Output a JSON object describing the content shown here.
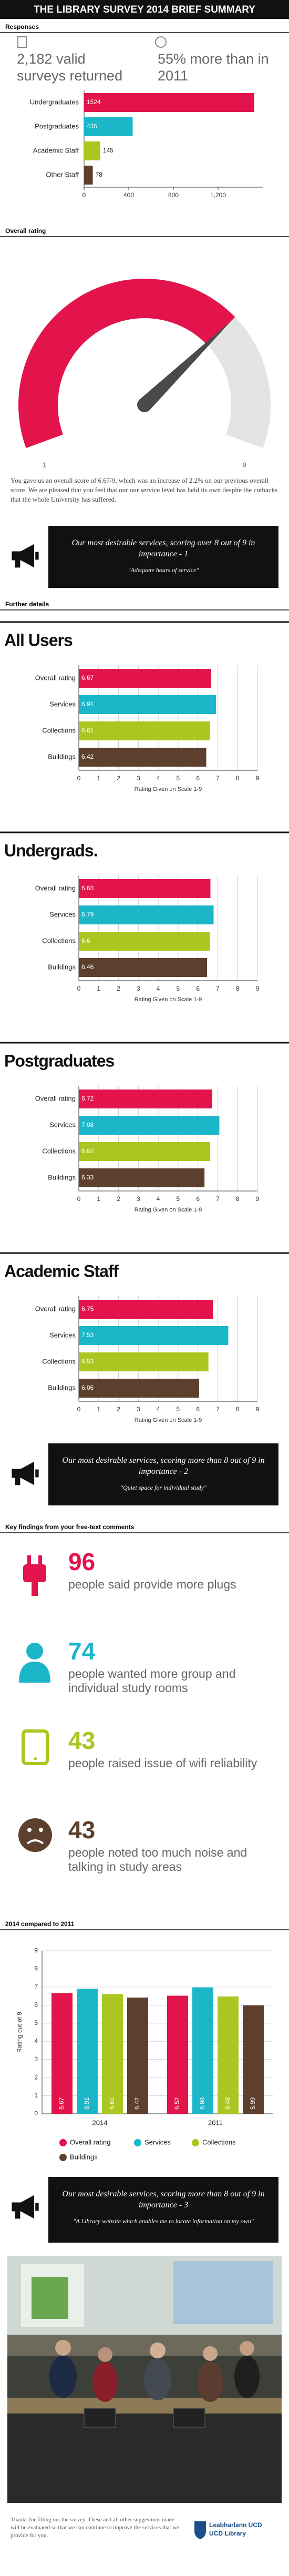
{
  "title": "THE LIBRARY SURVEY 2014 BRIEF SUMMARY",
  "headers": {
    "responses": "Responses",
    "overall": "Overall rating",
    "details": "Further details",
    "findings": "Key findings from your free-text comments",
    "comparison": "2014 compared to 2011"
  },
  "stats": [
    "2,182 valid surveys returned",
    "55% more than in 2011"
  ],
  "overall_text": "You gave us an overall score of 6.67/9, which was an increase of 2.2% on our previous overall score. We are pleased that you feel that our our service level has held its own despite the cutbacks that the whole University has suffered.",
  "quotes": [
    {
      "heading": "Our most desirable services, scoring over 8 out of 9 in importance - 1",
      "quote": "\"Adequate hours of service\""
    },
    {
      "heading": "Our most desirable services, scoring more than 8 out of 9 in importance - 2",
      "quote": "\"Quiet space for individual study\""
    },
    {
      "heading": "Our most desirable services, scoring more than 8 out of 9 in importance - 3",
      "quote": "\"A Library website which enables me to locate information on my own\""
    }
  ],
  "findings": [
    {
      "count": 96,
      "text": "people said provide more plugs"
    },
    {
      "count": 74,
      "text": "people wanted more group and individual study rooms"
    },
    {
      "count": 43,
      "text": "people raised issue of wifi reliability"
    },
    {
      "count": 43,
      "text": "people noted too much noise and talking in study areas"
    }
  ],
  "footer": {
    "text": "Thanks for filling out the survey. These and all other suggestions made will be evaluated so that we can continue to improve the services that we provide for you.",
    "logo": [
      "Leabharlann UCD",
      "UCD Library"
    ]
  },
  "chart_data": [
    {
      "type": "bar",
      "orientation": "horizontal",
      "categories": [
        "Undergraduates",
        "Postgraduates",
        "Academic Staff",
        "Other Staff"
      ],
      "values": [
        1524,
        435,
        145,
        78
      ],
      "colors": [
        "#e3144c",
        "#1cb6c9",
        "#a9c720",
        "#5c3f2d"
      ],
      "xlim": [
        0,
        1600
      ],
      "xticks": [
        0,
        400,
        800,
        {
          "value": 1200,
          "label": "1,200"
        }
      ],
      "grid": false
    },
    {
      "type": "gauge",
      "value": 6.67,
      "lim": [
        1,
        9
      ],
      "ticks": [
        1,
        9
      ],
      "color": "#e3144c",
      "track_color": "#e4e4e4"
    },
    {
      "type": "bar",
      "orientation": "horizontal",
      "title": "All Users",
      "categories": [
        "Overall rating",
        "Services",
        "Collections",
        "Buildings"
      ],
      "values": [
        6.67,
        6.91,
        6.61,
        6.42
      ],
      "colors": [
        "#e3144c",
        "#1cb6c9",
        "#a9c720",
        "#5c3f2d"
      ],
      "xlim": [
        0,
        9
      ],
      "xticks": [
        0,
        1,
        2,
        3,
        4,
        5,
        6,
        7,
        8,
        9
      ],
      "xlabel": "Rating Given on Scale 1-9",
      "grid": true
    },
    {
      "type": "bar",
      "orientation": "horizontal",
      "title": "Undergrads.",
      "categories": [
        "Overall rating",
        "Services",
        "Collections",
        "Buildings"
      ],
      "values": [
        6.63,
        6.79,
        6.6,
        6.46
      ],
      "colors": [
        "#e3144c",
        "#1cb6c9",
        "#a9c720",
        "#5c3f2d"
      ],
      "xlim": [
        0,
        9
      ],
      "xticks": [
        0,
        1,
        2,
        3,
        4,
        5,
        6,
        7,
        8,
        9
      ],
      "xlabel": "Rating Given on Scale 1-9",
      "grid": true
    },
    {
      "type": "bar",
      "orientation": "horizontal",
      "title": "Postgraduates",
      "categories": [
        "Overall rating",
        "Services",
        "Collections",
        "Buildings"
      ],
      "values": [
        6.72,
        7.08,
        6.62,
        6.33
      ],
      "colors": [
        "#e3144c",
        "#1cb6c9",
        "#a9c720",
        "#5c3f2d"
      ],
      "xlim": [
        0,
        9
      ],
      "xticks": [
        0,
        1,
        2,
        3,
        4,
        5,
        6,
        7,
        8,
        9
      ],
      "xlabel": "Rating Given on Scale 1-9",
      "grid": true
    },
    {
      "type": "bar",
      "orientation": "horizontal",
      "title": "Academic Staff",
      "categories": [
        "Overall rating",
        "Services",
        "Collections",
        "Buildings"
      ],
      "values": [
        6.75,
        7.53,
        6.53,
        6.06
      ],
      "colors": [
        "#e3144c",
        "#1cb6c9",
        "#a9c720",
        "#5c3f2d"
      ],
      "xlim": [
        0,
        9
      ],
      "xticks": [
        0,
        1,
        2,
        3,
        4,
        5,
        6,
        7,
        8,
        9
      ],
      "xlabel": "Rating Given on Scale 1-9",
      "grid": true
    },
    {
      "type": "bar",
      "orientation": "vertical",
      "categories": [
        "2014",
        "2011"
      ],
      "series": [
        {
          "name": "Overall rating",
          "color": "#e3144c",
          "values": [
            6.67,
            6.52
          ]
        },
        {
          "name": "Services",
          "color": "#1cb6c9",
          "values": [
            6.91,
            6.98
          ]
        },
        {
          "name": "Collections",
          "color": "#a9c720",
          "values": [
            6.61,
            6.48
          ]
        },
        {
          "name": "Buildings",
          "color": "#5c3f2d",
          "values": [
            6.42,
            5.99
          ]
        }
      ],
      "ylim": [
        0,
        9
      ],
      "yticks": [
        0,
        1,
        2,
        3,
        4,
        5,
        6,
        7,
        8,
        9
      ],
      "ylabel": "Rating out of 9",
      "grid": true,
      "legend": "bottom"
    }
  ]
}
